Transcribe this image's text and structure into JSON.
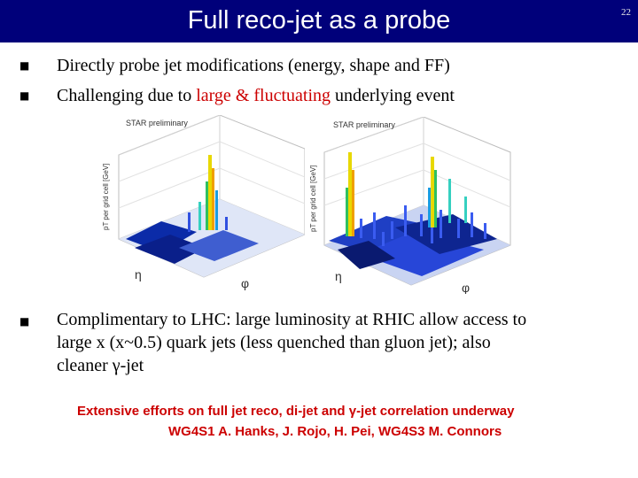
{
  "slide": {
    "title": "Full reco-jet as a probe",
    "number": "22"
  },
  "bullets": [
    {
      "prefix": "Directly probe jet modifications (energy, shape and FF)"
    },
    {
      "prefix": "Challenging due to ",
      "highlight": "large & fluctuating",
      "suffix": " underlying event"
    },
    {
      "line1": "Complimentary to LHC: large luminosity at RHIC allow access to",
      "line2": "large x (x~0.5) quark jets (less quenched than gluon jet); also",
      "line3": "cleaner γ-jet"
    }
  ],
  "plots": [
    {
      "label": "STAR preliminary",
      "zlabel": "pT per grid cell [GeV]",
      "xlabel": "η",
      "ylabel": "φ"
    },
    {
      "label": "STAR preliminary",
      "zlabel": "pT per grid cell [GeV]",
      "xlabel": "η",
      "ylabel": "φ"
    }
  ],
  "footer": {
    "line1": "Extensive efforts on full jet reco, di-jet and γ-jet correlation underway",
    "line2": "WG4S1 A. Hanks, J. Rojo, H. Pei, WG4S3 M. Connors"
  },
  "colors": {
    "title_bg": "#00007a",
    "highlight": "#cc0000",
    "footer": "#cc0000"
  }
}
